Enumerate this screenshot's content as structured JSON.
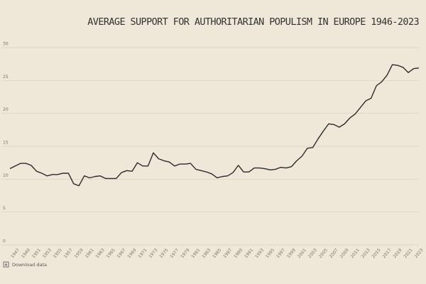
{
  "chart_data": {
    "type": "line",
    "title": "AVERAGE SUPPORT FOR AUTHORITARIAN POPULISM IN EUROPE 1946-2023",
    "x": [
      1946,
      1947,
      1948,
      1949,
      1950,
      1951,
      1952,
      1953,
      1954,
      1955,
      1956,
      1957,
      1958,
      1959,
      1960,
      1961,
      1962,
      1963,
      1964,
      1965,
      1966,
      1967,
      1968,
      1969,
      1970,
      1971,
      1972,
      1973,
      1974,
      1975,
      1976,
      1977,
      1978,
      1979,
      1980,
      1981,
      1982,
      1983,
      1984,
      1985,
      1986,
      1987,
      1988,
      1989,
      1990,
      1991,
      1992,
      1993,
      1994,
      1995,
      1996,
      1997,
      1998,
      1999,
      2000,
      2001,
      2002,
      2003,
      2004,
      2005,
      2006,
      2007,
      2008,
      2009,
      2010,
      2011,
      2012,
      2013,
      2014,
      2015,
      2016,
      2017,
      2018,
      2019,
      2020,
      2021,
      2022,
      2023
    ],
    "series": [
      {
        "color": "#2b2b2b",
        "values": [
          11.6,
          12.0,
          12.4,
          12.4,
          12.1,
          11.2,
          10.9,
          10.5,
          10.7,
          10.7,
          10.9,
          10.9,
          9.3,
          9.0,
          10.5,
          10.2,
          10.4,
          10.5,
          10.1,
          10.1,
          10.1,
          11.0,
          11.3,
          11.2,
          12.5,
          12.0,
          12.0,
          14.0,
          13.1,
          12.8,
          12.6,
          12.0,
          12.3,
          12.3,
          12.4,
          11.5,
          11.3,
          11.1,
          10.8,
          10.2,
          10.4,
          10.5,
          11.0,
          12.1,
          11.1,
          11.1,
          11.7,
          11.7,
          11.6,
          11.4,
          11.5,
          11.8,
          11.7,
          11.9,
          12.8,
          13.5,
          14.7,
          14.8,
          16.1,
          17.3,
          18.4,
          18.3,
          17.9,
          18.4,
          19.3,
          19.9,
          20.9,
          21.9,
          22.3,
          24.2,
          24.8,
          25.8,
          27.4,
          27.3,
          27.0,
          26.2,
          26.8,
          26.9
        ]
      }
    ],
    "xlim": [
      1946,
      2023
    ],
    "xticks": [
      1947,
      1949,
      1951,
      1953,
      1955,
      1957,
      1959,
      1961,
      1963,
      1965,
      1967,
      1969,
      1971,
      1973,
      1975,
      1977,
      1979,
      1981,
      1983,
      1985,
      1987,
      1989,
      1991,
      1993,
      1995,
      1997,
      1999,
      2001,
      2003,
      2005,
      2007,
      2009,
      2011,
      2013,
      2015,
      2017,
      2019,
      2021,
      2023
    ],
    "ylim": [
      0,
      30
    ],
    "yticks": [
      0,
      5,
      10,
      15,
      20,
      25,
      30
    ],
    "grid": true,
    "footer": "Download data"
  }
}
